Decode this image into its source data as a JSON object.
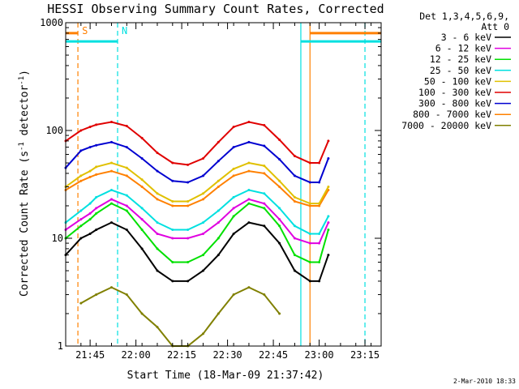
{
  "chart_data": {
    "type": "line",
    "title": "HESSI Observing Summary Count Rates, Corrected",
    "xlabel": "Start Time (18-Mar-09 21:37:42)",
    "ylabel": "Corrected Count Rate (s⁻¹ detector⁻¹)",
    "ylabel_parts": {
      "pre": "Corrected Count Rate (s",
      "exp1": "-1",
      "mid": " detector",
      "exp2": "-1",
      "post": ")"
    },
    "y_scale": "log",
    "ylim": [
      1,
      1000
    ],
    "xlim": [
      "21:37:42",
      "23:21:00"
    ],
    "x_ticks": [
      "21:45",
      "22:00",
      "22:15",
      "22:30",
      "22:45",
      "23:00",
      "23:15"
    ],
    "y_ticks": [
      "1",
      "10",
      "100",
      "1000"
    ],
    "x_units": "minutes after 21:37:42",
    "legend_header": [
      "Det 1,3,4,5,6,9,",
      "Att 0"
    ],
    "legend_position": "right, outside plot",
    "series": [
      {
        "name": "3 - 6 keV",
        "color": "#000000",
        "x": [
          0,
          5,
          8,
          10,
          15,
          20,
          25,
          30,
          35,
          40,
          45,
          50,
          55,
          60,
          65,
          70,
          75,
          80,
          83,
          86
        ],
        "values": [
          7,
          10,
          11,
          12,
          14,
          12,
          8,
          5,
          4,
          4,
          5,
          7,
          11,
          14,
          13,
          9,
          5,
          4,
          4,
          7
        ]
      },
      {
        "name": "6 - 12 keV",
        "color": "#e000e0",
        "x": [
          0,
          5,
          8,
          10,
          15,
          20,
          25,
          30,
          35,
          40,
          45,
          50,
          55,
          60,
          65,
          70,
          75,
          80,
          83,
          86
        ],
        "values": [
          12,
          15,
          17,
          19,
          23,
          20,
          15,
          11,
          10,
          10,
          11,
          14,
          19,
          23,
          21,
          15,
          10,
          9,
          9,
          14
        ]
      },
      {
        "name": "12 - 25 keV",
        "color": "#00e000",
        "x": [
          0,
          5,
          8,
          10,
          15,
          20,
          25,
          30,
          35,
          40,
          45,
          50,
          55,
          60,
          65,
          70,
          75,
          80,
          83,
          86
        ],
        "values": [
          10,
          13,
          15,
          17,
          21,
          18,
          12,
          8,
          6,
          6,
          7,
          10,
          16,
          21,
          19,
          13,
          7,
          6,
          6,
          12
        ]
      },
      {
        "name": "25 - 50 keV",
        "color": "#00e0e0",
        "x": [
          0,
          5,
          8,
          10,
          15,
          20,
          25,
          30,
          35,
          40,
          45,
          50,
          55,
          60,
          65,
          70,
          75,
          80,
          83,
          86
        ],
        "values": [
          14,
          18,
          21,
          24,
          28,
          25,
          19,
          14,
          12,
          12,
          14,
          18,
          24,
          28,
          26,
          19,
          13,
          11,
          11,
          16
        ]
      },
      {
        "name": "50 - 100 keV",
        "color": "#e0c000",
        "x": [
          0,
          5,
          8,
          10,
          15,
          20,
          25,
          30,
          35,
          40,
          45,
          50,
          55,
          60,
          65,
          70,
          75,
          80,
          83,
          86
        ],
        "values": [
          30,
          38,
          42,
          46,
          50,
          45,
          35,
          26,
          22,
          22,
          26,
          34,
          44,
          50,
          47,
          34,
          24,
          21,
          21,
          30
        ]
      },
      {
        "name": "100 - 300 keV",
        "color": "#e00000",
        "x": [
          0,
          5,
          8,
          10,
          15,
          20,
          25,
          30,
          35,
          40,
          45,
          50,
          55,
          60,
          65,
          70,
          75,
          80,
          83,
          86
        ],
        "values": [
          80,
          100,
          108,
          113,
          120,
          110,
          85,
          62,
          50,
          48,
          55,
          78,
          108,
          120,
          112,
          82,
          58,
          50,
          50,
          80
        ]
      },
      {
        "name": "300 - 800 keV",
        "color": "#0000d0",
        "x": [
          0,
          5,
          8,
          10,
          15,
          20,
          25,
          30,
          35,
          40,
          45,
          50,
          55,
          60,
          65,
          70,
          75,
          80,
          83,
          86
        ],
        "values": [
          45,
          65,
          70,
          73,
          78,
          70,
          55,
          42,
          34,
          33,
          38,
          52,
          70,
          78,
          72,
          54,
          38,
          33,
          33,
          55
        ]
      },
      {
        "name": "800 - 7000 keV",
        "color": "#ff8000",
        "x": [
          0,
          5,
          8,
          10,
          15,
          20,
          25,
          30,
          35,
          40,
          45,
          50,
          55,
          60,
          65,
          70,
          75,
          80,
          83,
          86
        ],
        "values": [
          28,
          34,
          37,
          39,
          42,
          38,
          30,
          23,
          20,
          20,
          23,
          30,
          38,
          42,
          40,
          30,
          22,
          20,
          20,
          28
        ]
      },
      {
        "name": "7000 - 20000 keV",
        "color": "#808000",
        "x": [
          5,
          10,
          15,
          20,
          25,
          30,
          35,
          40,
          45,
          50,
          55,
          60,
          65,
          70
        ],
        "values": [
          2.5,
          3,
          3.5,
          3,
          2,
          1.5,
          1,
          1,
          1.3,
          2,
          3,
          3.5,
          3,
          2
        ]
      }
    ],
    "annotations": [
      {
        "label": "S",
        "color": "#ff8000",
        "x": 4
      },
      {
        "label": "N",
        "color": "#00e0e0",
        "x": 17
      },
      {
        "label": "",
        "color": "#00e0e0",
        "x": 77
      },
      {
        "label": "",
        "color": "#ff8000",
        "x": 80
      },
      {
        "label": "",
        "color": "#00e0e0",
        "x": 98
      }
    ],
    "timestamp": "2-Mar-2010 18:33"
  }
}
